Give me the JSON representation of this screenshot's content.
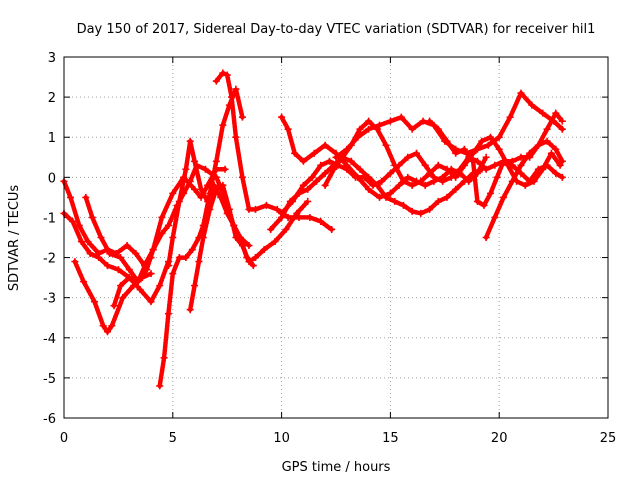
{
  "chart_data": {
    "type": "scatter",
    "title": "Day 150 of 2017, Sidereal Day-to-day VTEC variation (SDTVAR) for receiver hil1",
    "xlabel": "GPS time / hours",
    "ylabel": "SDTVAR / TECUs",
    "xlim": [
      0,
      25
    ],
    "ylim": [
      -6,
      3
    ],
    "xticks": [
      "0",
      "5",
      "10",
      "15",
      "20",
      "25"
    ],
    "yticks": [
      "-6",
      "-5",
      "-4",
      "-3",
      "-2",
      "-1",
      "0",
      "1",
      "2",
      "3"
    ],
    "grid": true,
    "marker": "plus",
    "color": "#ff0000",
    "series": [
      {
        "x": [
          0.0,
          0.3,
          0.7,
          1.1,
          1.6,
          2.0,
          2.4,
          2.9,
          3.3,
          3.7,
          4.0
        ],
        "y": [
          -0.1,
          -0.5,
          -1.2,
          -1.6,
          -1.9,
          -1.8,
          -1.9,
          -1.7,
          -1.9,
          -2.2,
          -2.0
        ]
      },
      {
        "x": [
          0.0,
          0.4,
          0.8,
          1.2,
          1.6,
          2.0,
          2.5,
          3.0,
          3.5,
          4.0,
          4.4,
          4.8
        ],
        "y": [
          -0.9,
          -1.1,
          -1.6,
          -1.9,
          -2.0,
          -2.2,
          -2.3,
          -2.5,
          -2.8,
          -3.1,
          -2.7,
          -2.1
        ]
      },
      {
        "x": [
          0.5,
          0.9,
          1.4,
          1.8,
          2.0,
          2.2,
          2.7,
          3.2,
          3.6,
          4.0
        ],
        "y": [
          -2.1,
          -2.6,
          -3.1,
          -3.7,
          -3.85,
          -3.7,
          -3.0,
          -2.7,
          -2.5,
          -2.4
        ]
      },
      {
        "x": [
          1.0,
          1.3,
          1.7,
          2.1,
          2.6,
          3.0,
          3.4,
          3.8,
          4.1,
          4.5,
          5.0,
          5.5,
          6.0,
          6.3,
          6.6,
          7.0,
          7.4
        ],
        "y": [
          -0.5,
          -1.0,
          -1.5,
          -1.9,
          -2.0,
          -2.3,
          -2.6,
          -2.3,
          -1.8,
          -1.0,
          -0.4,
          0.0,
          -0.3,
          -0.5,
          -0.2,
          0.2,
          0.2
        ]
      },
      {
        "x": [
          2.3,
          2.6,
          3.0,
          3.4,
          3.8,
          4.1,
          4.5,
          4.8,
          5.2,
          5.5,
          5.8,
          6.1,
          6.5,
          7.0,
          7.4,
          7.8,
          8.1,
          8.4,
          8.7
        ],
        "y": [
          -3.2,
          -2.7,
          -2.5,
          -2.6,
          -2.1,
          -1.8,
          -1.4,
          -1.2,
          -0.7,
          -0.4,
          -0.1,
          0.3,
          0.2,
          0.0,
          -0.5,
          -1.2,
          -1.5,
          -2.0,
          -2.2
        ]
      },
      {
        "x": [
          4.4,
          4.6,
          4.8,
          5.0,
          5.3,
          5.6,
          5.9,
          6.2,
          6.4,
          6.7,
          7.0,
          7.3,
          7.6,
          7.9,
          8.2
        ],
        "y": [
          -5.2,
          -4.5,
          -3.4,
          -2.4,
          -2.0,
          -2.0,
          -1.8,
          -1.5,
          -1.2,
          -0.4,
          0.4,
          1.3,
          1.8,
          2.2,
          1.5
        ]
      },
      {
        "x": [
          4.8,
          5.0,
          5.3,
          5.6,
          5.8,
          6.0,
          6.3,
          6.6,
          6.9,
          7.2,
          7.5,
          7.8,
          8.1,
          8.5
        ],
        "y": [
          -2.2,
          -1.5,
          -0.6,
          0.2,
          0.9,
          0.4,
          -0.3,
          -0.6,
          -0.2,
          -0.5,
          -0.9,
          -1.2,
          -1.5,
          -1.7
        ]
      },
      {
        "x": [
          5.8,
          6.0,
          6.2,
          6.4,
          6.7,
          7.0,
          7.3,
          7.6,
          7.9,
          8.2,
          8.5,
          8.8,
          9.2,
          9.7,
          10.2,
          10.7,
          11.2
        ],
        "y": [
          -3.3,
          -2.7,
          -2.1,
          -1.5,
          -0.8,
          -0.3,
          -0.2,
          -0.8,
          -1.5,
          -1.7,
          -2.1,
          -2.0,
          -1.8,
          -1.6,
          -1.3,
          -0.9,
          -0.6
        ]
      },
      {
        "x": [
          7.0,
          7.3,
          7.5,
          7.7,
          7.9,
          8.2,
          8.5,
          8.8,
          9.3,
          9.8,
          10.3,
          10.8,
          11.3,
          11.8,
          12.3
        ],
        "y": [
          2.4,
          2.6,
          2.55,
          2.0,
          1.0,
          0.0,
          -0.8,
          -0.8,
          -0.7,
          -0.8,
          -1.0,
          -1.0,
          -1.0,
          -1.1,
          -1.3
        ]
      },
      {
        "x": [
          9.5,
          10.0,
          10.4,
          10.8,
          11.2,
          11.6,
          12.0,
          12.4,
          12.8,
          13.2,
          13.6,
          14.0,
          14.4,
          14.8,
          15.2,
          15.6,
          16.0,
          16.4,
          16.8,
          17.2,
          17.6,
          18.0,
          18.4,
          18.8,
          19.2
        ],
        "y": [
          -1.3,
          -1.0,
          -0.6,
          -0.4,
          -0.3,
          -0.1,
          0.1,
          0.3,
          0.5,
          0.4,
          0.2,
          0.0,
          -0.2,
          -0.5,
          -0.6,
          -0.7,
          -0.85,
          -0.9,
          -0.8,
          -0.6,
          -0.5,
          -0.3,
          -0.1,
          0.1,
          0.2
        ]
      },
      {
        "x": [
          10.0,
          10.5,
          11.0,
          11.4,
          11.8,
          12.2,
          12.6,
          13.0,
          13.4,
          13.8,
          14.2,
          14.6,
          15.0,
          15.4,
          15.8,
          16.2,
          16.6,
          17.0,
          17.4,
          17.8,
          18.2,
          18.6,
          19.0,
          19.4,
          19.8,
          20.2,
          20.6,
          21.0,
          21.4,
          21.8,
          22.2,
          22.6,
          22.9
        ],
        "y": [
          -0.9,
          -0.6,
          -0.2,
          0.0,
          0.3,
          0.4,
          0.3,
          0.2,
          0.0,
          0.0,
          -0.2,
          -0.1,
          0.1,
          0.3,
          0.5,
          0.6,
          0.3,
          0.0,
          -0.1,
          0.0,
          0.2,
          0.5,
          0.4,
          0.2,
          0.3,
          0.4,
          0.4,
          0.5,
          0.5,
          0.8,
          0.9,
          0.7,
          0.4
        ]
      },
      {
        "x": [
          10.0,
          10.3,
          10.6,
          11.0,
          11.5,
          12.0,
          12.5,
          13.0,
          13.5,
          14.0,
          14.5,
          15.0,
          15.4,
          15.8,
          16.2,
          16.6,
          17.0,
          17.4,
          17.8,
          18.2,
          18.6,
          19.0,
          19.4
        ],
        "y": [
          1.5,
          1.2,
          0.6,
          0.4,
          0.6,
          0.8,
          0.6,
          0.3,
          0.0,
          -0.3,
          -0.5,
          -0.4,
          -0.2,
          0.0,
          -0.1,
          -0.2,
          -0.1,
          0.0,
          0.2,
          0.1,
          -0.1,
          0.1,
          0.5
        ]
      },
      {
        "x": [
          12.0,
          12.4,
          12.8,
          13.2,
          13.6,
          14.0,
          14.4,
          14.8,
          15.2,
          15.6,
          16.0,
          16.4,
          16.8,
          17.2,
          17.6,
          18.0,
          18.4,
          18.8,
          19.2,
          19.6,
          20.0,
          20.4,
          20.8,
          21.2,
          21.6,
          22.0,
          22.4,
          22.8
        ],
        "y": [
          -0.2,
          0.2,
          0.5,
          0.8,
          1.2,
          1.4,
          1.2,
          0.8,
          0.3,
          -0.1,
          -0.2,
          -0.1,
          0.1,
          0.3,
          0.2,
          0.0,
          0.3,
          0.6,
          0.9,
          1.0,
          0.7,
          0.3,
          -0.1,
          -0.2,
          -0.1,
          0.2,
          0.6,
          0.3
        ]
      },
      {
        "x": [
          12.5,
          13.0,
          13.5,
          14.0,
          14.5,
          15.0,
          15.5,
          16.0,
          16.5,
          17.0,
          17.5,
          18.0,
          18.5,
          19.0,
          19.5,
          20.0,
          20.5,
          21.0,
          21.5,
          22.0,
          22.5,
          22.9
        ],
        "y": [
          0.5,
          0.7,
          1.0,
          1.2,
          1.3,
          1.4,
          1.5,
          1.2,
          1.4,
          1.3,
          0.9,
          0.7,
          0.6,
          0.7,
          0.8,
          1.0,
          1.5,
          2.1,
          1.8,
          1.6,
          1.4,
          1.2
        ]
      },
      {
        "x": [
          16.8,
          17.2,
          17.6,
          18.0,
          18.4,
          18.8,
          19.0,
          19.3,
          19.6,
          19.9,
          20.2,
          20.6,
          21.0,
          21.4,
          21.8,
          22.2,
          22.6,
          22.9
        ],
        "y": [
          1.4,
          1.2,
          0.9,
          0.6,
          0.7,
          0.4,
          -0.6,
          -0.7,
          -0.4,
          0.0,
          0.4,
          0.3,
          0.1,
          -0.1,
          0.2,
          0.3,
          0.1,
          0.0
        ]
      },
      {
        "x": [
          19.4,
          19.8,
          20.2,
          20.6,
          21.0,
          21.4,
          21.8,
          22.2,
          22.6,
          22.9
        ],
        "y": [
          -1.5,
          -1.0,
          -0.5,
          -0.1,
          0.3,
          0.6,
          0.8,
          1.2,
          1.6,
          1.4
        ]
      }
    ]
  }
}
